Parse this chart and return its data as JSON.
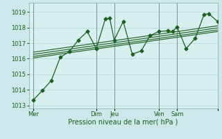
{
  "title": "",
  "xlabel": "Pression niveau de la mer( hPa )",
  "bg_color": "#cce8ea",
  "grid_color": "#b0d8dc",
  "plot_bg": "#d8eff0",
  "line_color": "#1a6020",
  "xlim": [
    0,
    126
  ],
  "ylim": [
    1012.8,
    1019.6
  ],
  "yticks": [
    1013,
    1014,
    1015,
    1016,
    1017,
    1018,
    1019
  ],
  "xtick_positions": [
    3,
    45,
    57,
    87,
    99,
    126
  ],
  "xtick_labels": [
    "Mer",
    "Dim",
    "Jeu",
    "Ven",
    "Sam",
    ""
  ],
  "vlines": [
    3,
    45,
    57,
    87,
    99
  ],
  "main_series": [
    [
      3,
      1013.35
    ],
    [
      9,
      1013.95
    ],
    [
      15,
      1014.6
    ],
    [
      21,
      1016.1
    ],
    [
      27,
      1016.45
    ],
    [
      33,
      1017.2
    ],
    [
      39,
      1017.75
    ],
    [
      45,
      1016.65
    ],
    [
      51,
      1018.55
    ],
    [
      54,
      1018.6
    ],
    [
      57,
      1017.2
    ],
    [
      63,
      1018.4
    ],
    [
      69,
      1016.3
    ],
    [
      75,
      1016.5
    ],
    [
      81,
      1017.5
    ],
    [
      87,
      1017.75
    ],
    [
      93,
      1017.8
    ],
    [
      96,
      1017.75
    ],
    [
      99,
      1018.05
    ],
    [
      105,
      1016.65
    ],
    [
      111,
      1017.3
    ],
    [
      117,
      1018.85
    ],
    [
      120,
      1018.9
    ],
    [
      126,
      1018.4
    ]
  ],
  "trend_lines": [
    [
      [
        3,
        1016.05
      ],
      [
        126,
        1017.75
      ]
    ],
    [
      [
        3,
        1016.15
      ],
      [
        126,
        1017.85
      ]
    ],
    [
      [
        3,
        1016.28
      ],
      [
        126,
        1017.98
      ]
    ],
    [
      [
        3,
        1016.42
      ],
      [
        126,
        1018.12
      ]
    ]
  ]
}
